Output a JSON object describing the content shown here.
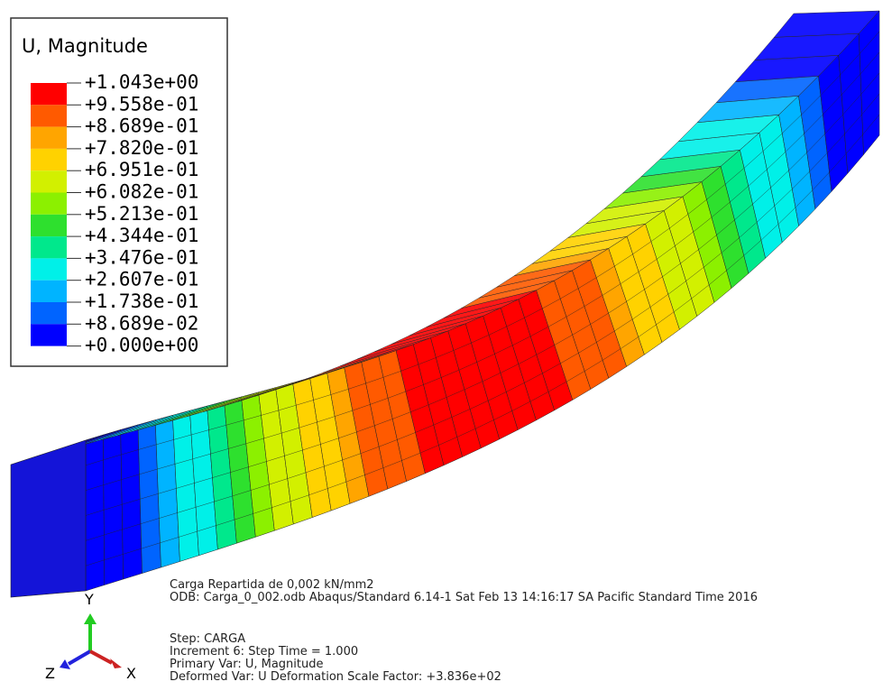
{
  "legend": {
    "title": "U, Magnitude",
    "labels": [
      "+1.043e+00",
      "+9.558e-01",
      "+8.689e-01",
      "+7.820e-01",
      "+6.951e-01",
      "+6.082e-01",
      "+5.213e-01",
      "+4.344e-01",
      "+3.476e-01",
      "+2.607e-01",
      "+1.738e-01",
      "+8.689e-02",
      "+0.000e+00"
    ],
    "colors": [
      "#ff0000",
      "#ff5a00",
      "#ffa500",
      "#ffd200",
      "#d2f000",
      "#8cf000",
      "#2ee02e",
      "#00e88c",
      "#00f0e8",
      "#00b4ff",
      "#0064ff",
      "#0000ff"
    ]
  },
  "info": {
    "header": [
      "Carga Repartida de 0,002 kN/mm2",
      "ODB: Carga_0_002.odb    Abaqus/Standard 6.14-1    Sat Feb 13 14:16:17 SA Pacific Standard Time 2016"
    ],
    "step": [
      "Step: CARGA",
      "Increment     6: Step Time =     1.000",
      "Primary Var: U, Magnitude",
      "Deformed Var: U   Deformation Scale Factor: +3.836e+02"
    ]
  },
  "triad": {
    "y": "Y",
    "z": "Z",
    "x": "X"
  }
}
